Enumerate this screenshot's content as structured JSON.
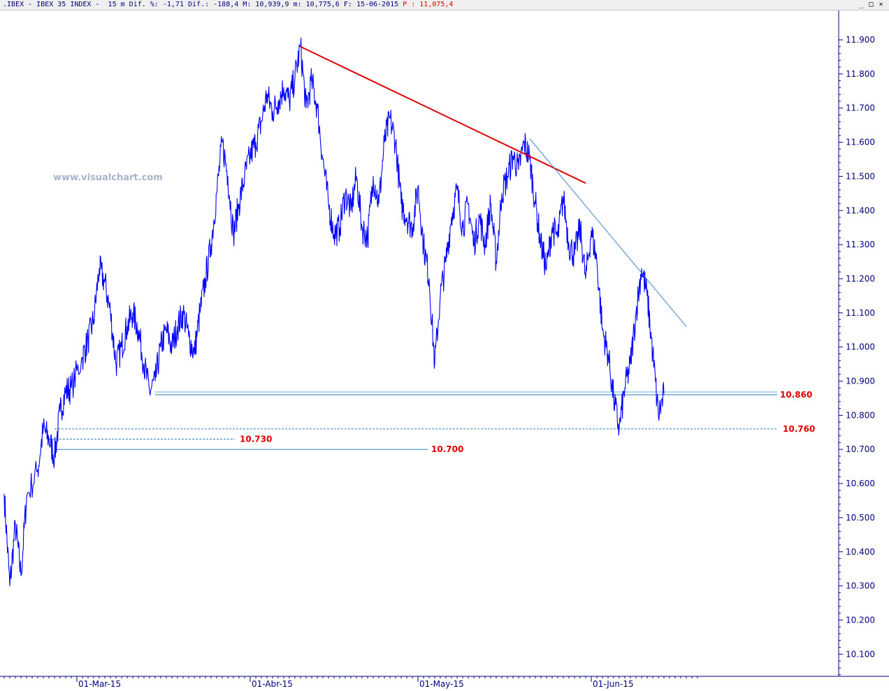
{
  "header": {
    "prefix": ".IBEX",
    "name": "IBEX 35 INDEX",
    "interval": "15 m",
    "dif_pct_label": "Dif. %:",
    "dif_pct": "-1,71",
    "dif_label": "Dif.:",
    "dif": "-188,4",
    "max_label": "M:",
    "max": "10,939,9",
    "min_label": "m:",
    "min": "10,775,6",
    "date_label": "F:",
    "date": "15-06-2015",
    "price_label": "P",
    "price": "11,075,4"
  },
  "window_buttons": [
    "_",
    "□",
    "×"
  ],
  "watermark": "www.visualchart.com",
  "colors": {
    "price": "#0000ff",
    "axis": "#00007f",
    "resistance": "#e00000",
    "trend": "#3a88cc",
    "support": "#2a80c0",
    "label": "#e00000"
  },
  "chart_data": {
    "type": "line",
    "ylim": [
      10050,
      11970
    ],
    "x_range": [
      "2015-02-16",
      "2015-06-15"
    ],
    "yticks": [
      "11.900",
      "11.800",
      "11.700",
      "11.600",
      "11.500",
      "11.400",
      "11.300",
      "11.200",
      "11.100",
      "11.000",
      "10.900",
      "10.800",
      "10.700",
      "10.600",
      "10.500",
      "10.400",
      "10.300",
      "10.200",
      "10.100"
    ],
    "ytick_values": [
      11900,
      11800,
      11700,
      11600,
      11500,
      11400,
      11300,
      11200,
      11100,
      11000,
      10900,
      10800,
      10700,
      10600,
      10500,
      10400,
      10300,
      10200,
      10100
    ],
    "xticks": [
      "01-Mar-15",
      "01-Abr-15",
      "01-May-15",
      "01-Jun-15"
    ],
    "xtick_dates": [
      "2015-03-01",
      "2015-04-01",
      "2015-05-01",
      "2015-06-01"
    ],
    "series": [
      {
        "points": [
          [
            "2015-02-16",
            10570
          ],
          [
            "2015-02-17",
            10300
          ],
          [
            "2015-02-18",
            10480
          ],
          [
            "2015-02-19",
            10330
          ],
          [
            "2015-02-20",
            10560
          ],
          [
            "2015-02-22",
            10640
          ],
          [
            "2015-02-23",
            10760
          ],
          [
            "2015-02-24",
            10730
          ],
          [
            "2015-02-25",
            10680
          ],
          [
            "2015-02-26",
            10810
          ],
          [
            "2015-02-27",
            10870
          ],
          [
            "2015-02-28",
            10880
          ],
          [
            "2015-03-02",
            10970
          ],
          [
            "2015-03-03",
            11020
          ],
          [
            "2015-03-04",
            11080
          ],
          [
            "2015-03-05",
            11230
          ],
          [
            "2015-03-06",
            11190
          ],
          [
            "2015-03-07",
            11100
          ],
          [
            "2015-03-08",
            10950
          ],
          [
            "2015-03-09",
            11000
          ],
          [
            "2015-03-10",
            11060
          ],
          [
            "2015-03-11",
            11100
          ],
          [
            "2015-03-12",
            11050
          ],
          [
            "2015-03-13",
            10950
          ],
          [
            "2015-03-14",
            10870
          ],
          [
            "2015-03-15",
            10900
          ],
          [
            "2015-03-16",
            11000
          ],
          [
            "2015-03-17",
            11050
          ],
          [
            "2015-03-18",
            11000
          ],
          [
            "2015-03-19",
            11060
          ],
          [
            "2015-03-20",
            11100
          ],
          [
            "2015-03-21",
            11030
          ],
          [
            "2015-03-22",
            10980
          ],
          [
            "2015-03-23",
            11100
          ],
          [
            "2015-03-24",
            11200
          ],
          [
            "2015-03-25",
            11300
          ],
          [
            "2015-03-26",
            11450
          ],
          [
            "2015-03-27",
            11600
          ],
          [
            "2015-03-28",
            11500
          ],
          [
            "2015-03-29",
            11330
          ],
          [
            "2015-03-30",
            11420
          ],
          [
            "2015-03-31",
            11500
          ],
          [
            "2015-04-01",
            11560
          ],
          [
            "2015-04-02",
            11600
          ],
          [
            "2015-04-03",
            11660
          ],
          [
            "2015-04-04",
            11740
          ],
          [
            "2015-04-05",
            11690
          ],
          [
            "2015-04-06",
            11720
          ],
          [
            "2015-04-07",
            11760
          ],
          [
            "2015-04-08",
            11720
          ],
          [
            "2015-04-09",
            11790
          ],
          [
            "2015-04-10",
            11880
          ],
          [
            "2015-04-11",
            11700
          ],
          [
            "2015-04-12",
            11780
          ],
          [
            "2015-04-13",
            11700
          ],
          [
            "2015-04-14",
            11550
          ],
          [
            "2015-04-15",
            11420
          ],
          [
            "2015-04-16",
            11330
          ],
          [
            "2015-04-17",
            11350
          ],
          [
            "2015-04-18",
            11450
          ],
          [
            "2015-04-19",
            11400
          ],
          [
            "2015-04-20",
            11500
          ],
          [
            "2015-04-21",
            11350
          ],
          [
            "2015-04-22",
            11320
          ],
          [
            "2015-04-23",
            11500
          ],
          [
            "2015-04-24",
            11420
          ],
          [
            "2015-04-25",
            11600
          ],
          [
            "2015-04-26",
            11670
          ],
          [
            "2015-04-27",
            11600
          ],
          [
            "2015-04-28",
            11420
          ],
          [
            "2015-04-29",
            11380
          ],
          [
            "2015-04-30",
            11350
          ],
          [
            "2015-05-01",
            11470
          ],
          [
            "2015-05-02",
            11300
          ],
          [
            "2015-05-03",
            11200
          ],
          [
            "2015-05-04",
            10950
          ],
          [
            "2015-05-05",
            11150
          ],
          [
            "2015-05-06",
            11250
          ],
          [
            "2015-05-07",
            11380
          ],
          [
            "2015-05-08",
            11460
          ],
          [
            "2015-05-09",
            11350
          ],
          [
            "2015-05-10",
            11420
          ],
          [
            "2015-05-11",
            11300
          ],
          [
            "2015-05-12",
            11380
          ],
          [
            "2015-05-13",
            11300
          ],
          [
            "2015-05-14",
            11420
          ],
          [
            "2015-05-15",
            11250
          ],
          [
            "2015-05-16",
            11450
          ],
          [
            "2015-05-17",
            11500
          ],
          [
            "2015-05-18",
            11560
          ],
          [
            "2015-05-19",
            11520
          ],
          [
            "2015-05-20",
            11600
          ],
          [
            "2015-05-21",
            11550
          ],
          [
            "2015-05-22",
            11420
          ],
          [
            "2015-05-23",
            11300
          ],
          [
            "2015-05-24",
            11230
          ],
          [
            "2015-05-25",
            11350
          ],
          [
            "2015-05-26",
            11320
          ],
          [
            "2015-05-27",
            11440
          ],
          [
            "2015-05-28",
            11300
          ],
          [
            "2015-05-29",
            11270
          ],
          [
            "2015-05-30",
            11350
          ],
          [
            "2015-05-31",
            11200
          ],
          [
            "2015-06-01",
            11340
          ],
          [
            "2015-06-02",
            11250
          ],
          [
            "2015-06-03",
            11050
          ],
          [
            "2015-06-04",
            10980
          ],
          [
            "2015-06-05",
            10850
          ],
          [
            "2015-06-06",
            10760
          ],
          [
            "2015-06-07",
            10880
          ],
          [
            "2015-06-08",
            10950
          ],
          [
            "2015-06-09",
            11100
          ],
          [
            "2015-06-10",
            11230
          ],
          [
            "2015-06-11",
            11150
          ],
          [
            "2015-06-12",
            10980
          ],
          [
            "2015-06-13",
            10800
          ],
          [
            "2015-06-14",
            10860
          ]
        ]
      }
    ],
    "trendlines": [
      {
        "kind": "resistance",
        "from": [
          "2015-04-10",
          11880
        ],
        "to": [
          "2015-05-31",
          11480
        ]
      },
      {
        "kind": "trend",
        "from": [
          "2015-05-21",
          11610
        ],
        "to": [
          "2015-06-18",
          11060
        ]
      }
    ],
    "levels": [
      {
        "label": "10.860",
        "value": 10860,
        "from": "2015-03-15"
      },
      {
        "label": "10.760",
        "value": 10760,
        "from": "2015-02-25"
      },
      {
        "label": "10.730",
        "value": 10730,
        "from": "2015-02-24"
      },
      {
        "label": "10.700",
        "value": 10700,
        "from": "2015-02-25"
      }
    ]
  }
}
